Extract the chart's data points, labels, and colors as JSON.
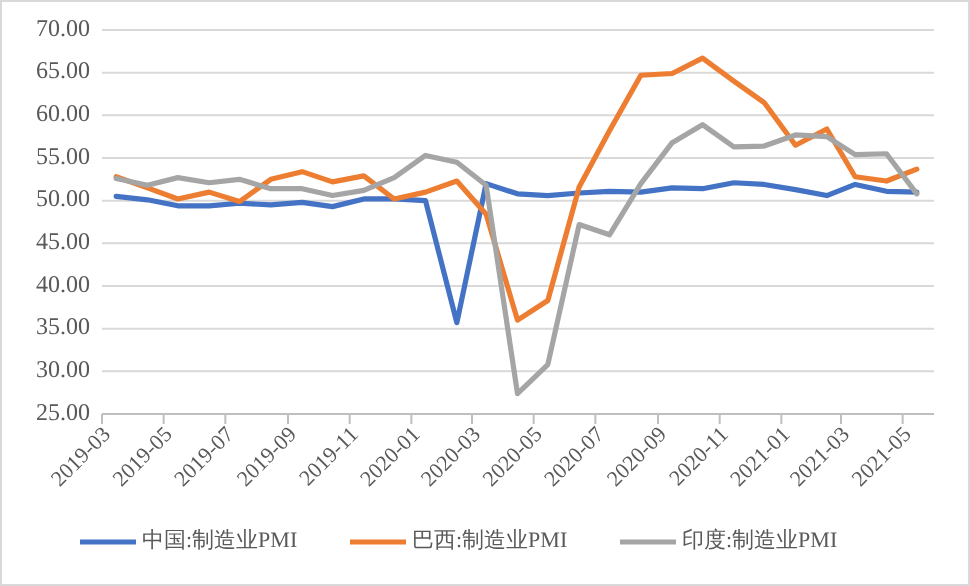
{
  "chart_data": {
    "type": "line",
    "x": [
      "2019-03-15",
      "2019-04-15",
      "2019-05-15",
      "2019-06-15",
      "2019-07-15",
      "2019-08-15",
      "2019-09-15",
      "2019-10-15",
      "2019-11-15",
      "2019-12-15",
      "2020-01-15",
      "2020-02-15",
      "2020-03-15",
      "2020-04-15",
      "2020-05-15",
      "2020-06-15",
      "2020-07-15",
      "2020-08-15",
      "2020-09-15",
      "2020-10-15",
      "2020-11-15",
      "2020-12-15",
      "2021-01-15",
      "2021-02-15",
      "2021-03-15",
      "2021-04-15",
      "2021-05-15"
    ],
    "series": [
      {
        "name": "中国:制造业PMI",
        "color": "#4472c4",
        "values": [
          50.5,
          50.1,
          49.4,
          49.4,
          49.7,
          49.5,
          49.8,
          49.3,
          50.2,
          50.2,
          50.0,
          35.7,
          52.0,
          50.8,
          50.6,
          50.9,
          51.1,
          51.0,
          51.5,
          51.4,
          52.1,
          51.9,
          51.3,
          50.6,
          51.9,
          51.1,
          51.0
        ]
      },
      {
        "name": "巴西:制造业PMI",
        "color": "#ed7d31",
        "values": [
          52.8,
          51.5,
          50.2,
          51.0,
          49.9,
          52.5,
          53.4,
          52.2,
          52.9,
          50.2,
          51.0,
          52.3,
          48.4,
          36.0,
          38.3,
          51.6,
          58.2,
          64.7,
          64.9,
          66.7,
          64.0,
          61.5,
          56.5,
          58.4,
          52.8,
          52.3,
          53.7
        ]
      },
      {
        "name": "印度:制造业PMI",
        "color": "#a5a5a5",
        "values": [
          52.6,
          51.8,
          52.7,
          52.1,
          52.5,
          51.4,
          51.4,
          50.6,
          51.2,
          52.7,
          55.3,
          54.5,
          51.8,
          27.4,
          30.8,
          47.2,
          46.0,
          52.0,
          56.8,
          58.9,
          56.3,
          56.4,
          57.7,
          57.5,
          55.4,
          55.5,
          50.8
        ]
      }
    ],
    "xlim": [
      "2019-03-01",
      "2021-06-01"
    ],
    "xticks": [
      "2019-03",
      "2019-05",
      "2019-07",
      "2019-09",
      "2019-11",
      "2020-01",
      "2020-03",
      "2020-05",
      "2020-07",
      "2020-09",
      "2020-11",
      "2021-01",
      "2021-03",
      "2021-05"
    ],
    "ylim": [
      25,
      70
    ],
    "yticks": [
      {
        "value": 25,
        "label": "25.00"
      },
      {
        "value": 30,
        "label": "30.00"
      },
      {
        "value": 35,
        "label": "35.00"
      },
      {
        "value": 40,
        "label": "40.00"
      },
      {
        "value": 45,
        "label": "45.00"
      },
      {
        "value": 50,
        "label": "50.00"
      },
      {
        "value": 55,
        "label": "55.00"
      },
      {
        "value": 60,
        "label": "60.00"
      },
      {
        "value": 65,
        "label": "65.00"
      },
      {
        "value": 70,
        "label": "70.00"
      }
    ],
    "grid": "y",
    "legend": "bottom",
    "marker": "none",
    "line_style": "solid"
  }
}
